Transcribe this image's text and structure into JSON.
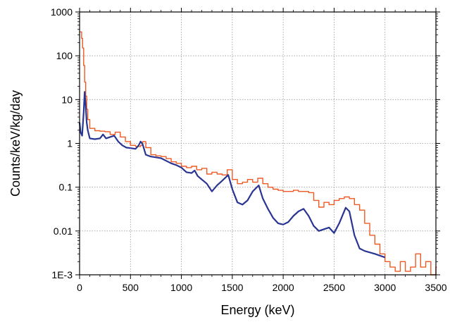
{
  "chart_data": {
    "type": "line",
    "title": "",
    "xlabel": "Energy (keV)",
    "ylabel": "Counts/keV/kg/day",
    "xlim": [
      0,
      3500
    ],
    "ylim": [
      0.001,
      1000
    ],
    "yscale": "log",
    "grid": true,
    "legend": "none",
    "x_ticks": [
      0,
      500,
      1000,
      1500,
      2000,
      2500,
      3000,
      3500
    ],
    "x_tick_labels": [
      "0",
      "500",
      "1000",
      "1500",
      "2000",
      "2500",
      "3000",
      "3500"
    ],
    "y_ticks": [
      0.001,
      0.01,
      0.1,
      1,
      10,
      100,
      1000
    ],
    "y_tick_labels": [
      "1E-3",
      "0.01",
      "0.1",
      "1",
      "10",
      "100",
      "1000"
    ],
    "series": [
      {
        "color": "#ee5a24",
        "style": "step",
        "x": [
          10,
          20,
          30,
          40,
          50,
          60,
          70,
          80,
          100,
          150,
          200,
          250,
          300,
          350,
          400,
          450,
          500,
          550,
          600,
          620,
          650,
          700,
          750,
          800,
          850,
          900,
          950,
          1000,
          1050,
          1100,
          1150,
          1200,
          1250,
          1300,
          1350,
          1400,
          1450,
          1500,
          1550,
          1600,
          1650,
          1700,
          1750,
          1800,
          1850,
          1900,
          1950,
          2000,
          2050,
          2100,
          2150,
          2200,
          2250,
          2300,
          2350,
          2400,
          2450,
          2500,
          2550,
          2600,
          2650,
          2700,
          2750,
          2800,
          2850,
          2900,
          2950,
          3000,
          3050,
          3100,
          3150,
          3200,
          3250,
          3300,
          3350,
          3400,
          3450,
          3500
        ],
        "y": [
          350,
          250,
          150,
          60,
          25,
          12,
          6,
          3.5,
          2.2,
          1.95,
          1.9,
          1.85,
          1.6,
          1.8,
          1.4,
          1.1,
          0.9,
          0.85,
          0.9,
          1.1,
          0.8,
          0.55,
          0.52,
          0.5,
          0.45,
          0.38,
          0.35,
          0.3,
          0.28,
          0.3,
          0.25,
          0.27,
          0.2,
          0.22,
          0.2,
          0.19,
          0.25,
          0.15,
          0.12,
          0.13,
          0.15,
          0.13,
          0.16,
          0.12,
          0.1,
          0.09,
          0.085,
          0.08,
          0.08,
          0.085,
          0.08,
          0.08,
          0.075,
          0.05,
          0.035,
          0.045,
          0.04,
          0.05,
          0.055,
          0.06,
          0.055,
          0.04,
          0.03,
          0.015,
          0.008,
          0.005,
          0.003,
          0.002,
          0.0015,
          0.0012,
          0.002,
          0.0012,
          0.0015,
          0.003,
          0.0015,
          0.002,
          0.001,
          0.0015
        ]
      },
      {
        "color": "#2a3593",
        "style": "line",
        "x": [
          0,
          10,
          25,
          40,
          50,
          60,
          70,
          80,
          100,
          150,
          200,
          230,
          260,
          300,
          340,
          380,
          420,
          460,
          500,
          550,
          580,
          600,
          620,
          650,
          700,
          750,
          800,
          850,
          900,
          950,
          1000,
          1050,
          1100,
          1130,
          1160,
          1200,
          1250,
          1300,
          1350,
          1400,
          1460,
          1500,
          1550,
          1600,
          1650,
          1700,
          1760,
          1800,
          1850,
          1900,
          1950,
          2000,
          2050,
          2100,
          2150,
          2200,
          2250,
          2300,
          2350,
          2400,
          2450,
          2500,
          2550,
          2614,
          2650,
          2700,
          2750,
          2800,
          2900,
          3000
        ],
        "y": [
          3,
          1.8,
          1.5,
          5,
          15,
          7,
          3,
          2,
          1.3,
          1.25,
          1.3,
          1.6,
          1.3,
          1.4,
          1.5,
          1.1,
          0.9,
          0.8,
          0.78,
          0.75,
          0.9,
          1.1,
          0.95,
          0.55,
          0.5,
          0.48,
          0.46,
          0.4,
          0.35,
          0.32,
          0.28,
          0.22,
          0.21,
          0.24,
          0.18,
          0.15,
          0.12,
          0.08,
          0.11,
          0.14,
          0.19,
          0.09,
          0.045,
          0.04,
          0.05,
          0.08,
          0.11,
          0.055,
          0.032,
          0.02,
          0.015,
          0.014,
          0.016,
          0.022,
          0.028,
          0.032,
          0.022,
          0.013,
          0.01,
          0.011,
          0.012,
          0.009,
          0.015,
          0.034,
          0.028,
          0.008,
          0.004,
          0.0035,
          0.003,
          0.0025
        ]
      }
    ]
  }
}
